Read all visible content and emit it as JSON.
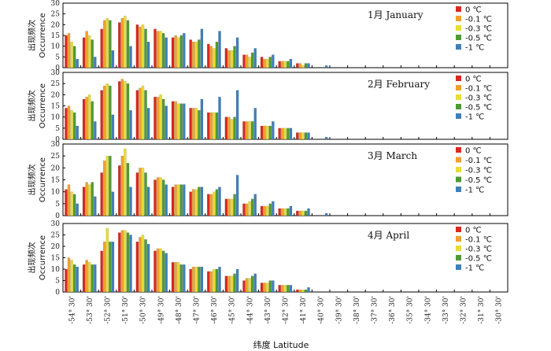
{
  "chart_data": {
    "type": "bar",
    "x_label": "纬度 Latitude",
    "y_label_cn": "出现频次",
    "y_label_en": "Occurrence",
    "categories": [
      "-54° 30'",
      "-53° 30'",
      "-52° 30'",
      "-51° 30'",
      "-50° 30'",
      "-49° 30'",
      "-48° 30'",
      "-47° 30'",
      "-46° 30'",
      "-45° 30'",
      "-44° 30'",
      "-43° 30'",
      "-42° 30'",
      "-41° 30'",
      "-40° 30'",
      "-39° 30'",
      "-38° 30'",
      "-37° 30'",
      "-36° 30'",
      "-35° 30'",
      "-34° 30'",
      "-33° 30'",
      "-32° 30'",
      "-31° 30'",
      "-30° 30'"
    ],
    "legend": [
      {
        "name": "0 ℃",
        "color": "#d62a1e"
      },
      {
        "name": "-0.1 ℃",
        "color": "#f0a030"
      },
      {
        "name": "-0.3 ℃",
        "color": "#e6dc3a"
      },
      {
        "name": "-0.5 ℃",
        "color": "#4f9a35"
      },
      {
        "name": "-1 ℃",
        "color": "#3f7fb8"
      }
    ],
    "ylim": [
      0,
      30
    ],
    "yticks": [
      0,
      5,
      10,
      15,
      20,
      25,
      30
    ],
    "panels": [
      {
        "title": "1月 January",
        "series": [
          {
            "name": "0 ℃",
            "values": [
              15,
              14,
              18,
              21,
              20,
              18,
              14,
              13,
              11,
              9,
              6,
              5,
              3,
              2,
              0,
              0,
              0,
              0,
              0,
              0,
              0,
              0,
              0,
              0,
              0
            ]
          },
          {
            "name": "-0.1 ℃",
            "values": [
              16,
              17,
              22,
              23,
              19,
              17,
              15,
              12,
              10,
              8,
              6,
              4,
              3,
              2,
              0,
              0,
              0,
              0,
              0,
              0,
              0,
              0,
              0,
              0,
              0
            ]
          },
          {
            "name": "-0.3 ℃",
            "values": [
              12,
              15,
              23,
              24,
              20,
              17,
              14,
              12,
              9,
              8,
              5,
              4,
              3,
              1,
              0,
              0,
              0,
              0,
              0,
              0,
              0,
              0,
              0,
              0,
              0
            ]
          },
          {
            "name": "-0.5 ℃",
            "values": [
              10,
              13,
              22,
              22,
              18,
              16,
              15,
              13,
              12,
              10,
              7,
              5,
              3,
              2,
              0,
              0,
              0,
              0,
              0,
              0,
              0,
              0,
              0,
              0,
              0
            ]
          },
          {
            "name": "-1 ℃",
            "values": [
              4,
              5,
              8,
              10,
              12,
              14,
              16,
              18,
              17,
              14,
              9,
              6,
              4,
              2,
              1,
              0,
              0,
              0,
              0,
              0,
              0,
              0,
              0,
              0,
              0
            ]
          }
        ]
      },
      {
        "title": "2月 February",
        "series": [
          {
            "name": "0 ℃",
            "values": [
              14,
              18,
              22,
              26,
              22,
              19,
              17,
              14,
              12,
              10,
              8,
              6,
              5,
              3,
              0,
              0,
              0,
              0,
              0,
              0,
              0,
              0,
              0,
              0,
              0
            ]
          },
          {
            "name": "-0.1 ℃",
            "values": [
              15,
              19,
              24,
              27,
              23,
              19,
              17,
              14,
              12,
              10,
              8,
              6,
              5,
              3,
              0,
              0,
              0,
              0,
              0,
              0,
              0,
              0,
              0,
              0,
              0
            ]
          },
          {
            "name": "-0.3 ℃",
            "values": [
              13,
              20,
              25,
              26,
              24,
              20,
              16,
              14,
              12,
              9,
              8,
              6,
              5,
              3,
              0,
              0,
              0,
              0,
              0,
              0,
              0,
              0,
              0,
              0,
              0
            ]
          },
          {
            "name": "-0.5 ℃",
            "values": [
              12,
              17,
              24,
              25,
              22,
              18,
              16,
              13,
              12,
              10,
              8,
              6,
              5,
              3,
              0,
              0,
              0,
              0,
              0,
              0,
              0,
              0,
              0,
              0,
              0
            ]
          },
          {
            "name": "-1 ℃",
            "values": [
              6,
              8,
              11,
              13,
              14,
              15,
              16,
              18,
              19,
              22,
              14,
              8,
              5,
              3,
              1,
              0,
              0,
              0,
              0,
              0,
              0,
              0,
              0,
              0,
              0
            ]
          }
        ]
      },
      {
        "title": "3月 March",
        "series": [
          {
            "name": "0 ℃",
            "values": [
              11,
              12,
              18,
              21,
              18,
              15,
              12,
              10,
              9,
              7,
              5,
              4,
              3,
              2,
              0,
              0,
              0,
              0,
              0,
              0,
              0,
              0,
              0,
              0,
              0
            ]
          },
          {
            "name": "-0.1 ℃",
            "values": [
              13,
              14,
              23,
              25,
              20,
              16,
              13,
              11,
              9,
              7,
              5,
              4,
              3,
              2,
              0,
              0,
              0,
              0,
              0,
              0,
              0,
              0,
              0,
              0,
              0
            ]
          },
          {
            "name": "-0.3 ℃",
            "values": [
              10,
              13,
              25,
              28,
              20,
              16,
              13,
              11,
              10,
              7,
              6,
              4,
              3,
              2,
              0,
              0,
              0,
              0,
              0,
              0,
              0,
              0,
              0,
              0,
              0
            ]
          },
          {
            "name": "-0.5 ℃",
            "values": [
              9,
              14,
              25,
              22,
              18,
              15,
              13,
              12,
              11,
              9,
              7,
              5,
              3,
              2,
              0,
              0,
              0,
              0,
              0,
              0,
              0,
              0,
              0,
              0,
              0
            ]
          },
          {
            "name": "-1 ℃",
            "values": [
              5,
              8,
              10,
              12,
              12,
              13,
              13,
              12,
              12,
              17,
              9,
              6,
              4,
              3,
              1,
              0,
              0,
              0,
              0,
              0,
              0,
              0,
              0,
              0,
              0
            ]
          }
        ]
      },
      {
        "title": "4月 April",
        "series": [
          {
            "name": "0 ℃",
            "values": [
              10,
              12,
              18,
              26,
              22,
              18,
              13,
              10,
              9,
              7,
              5,
              4,
              3,
              1,
              0,
              0,
              0,
              0,
              0,
              0,
              0,
              0,
              0,
              0,
              0
            ]
          },
          {
            "name": "-0.1 ℃",
            "values": [
              15,
              14,
              22,
              27,
              24,
              19,
              13,
              11,
              9,
              7,
              6,
              4,
              3,
              1,
              0,
              0,
              0,
              0,
              0,
              0,
              0,
              0,
              0,
              0,
              0
            ]
          },
          {
            "name": "-0.3 ℃",
            "values": [
              14,
              13,
              28,
              27,
              25,
              19,
              13,
              11,
              10,
              7,
              6,
              4,
              3,
              1,
              0,
              0,
              0,
              0,
              0,
              0,
              0,
              0,
              0,
              0,
              0
            ]
          },
          {
            "name": "-0.5 ℃",
            "values": [
              12,
              12,
              22,
              26,
              23,
              18,
              12,
              11,
              10,
              8,
              7,
              5,
              3,
              1,
              0,
              0,
              0,
              0,
              0,
              0,
              0,
              0,
              0,
              0,
              0
            ]
          },
          {
            "name": "-1 ℃",
            "values": [
              11,
              12,
              22,
              25,
              21,
              17,
              12,
              11,
              11,
              10,
              8,
              5,
              3,
              2,
              0,
              0,
              0,
              0,
              0,
              0,
              0,
              0,
              0,
              0,
              0
            ]
          }
        ]
      }
    ]
  }
}
